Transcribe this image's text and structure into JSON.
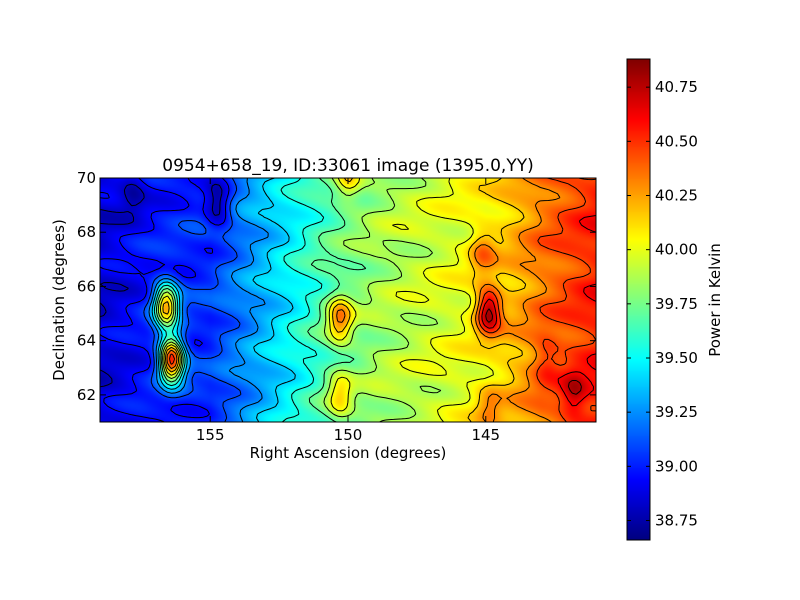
{
  "chart_data": {
    "type": "heatmap",
    "title": "0954+658_19, ID:33061 image (1395.0,YY)",
    "xlabel": "Right Ascension (degrees)",
    "ylabel": "Declination (degrees)",
    "xlim": [
      159,
      141
    ],
    "ylim": [
      61,
      70
    ],
    "x_ticks": [
      155,
      150,
      145
    ],
    "x_tick_labels": [
      "155",
      "150",
      "145"
    ],
    "y_ticks": [
      62,
      64,
      66,
      68,
      70
    ],
    "y_tick_labels": [
      "62",
      "64",
      "66",
      "68",
      "70"
    ],
    "colormap": "jet",
    "contours": true,
    "grid": false,
    "colorbar": {
      "label": "Power in Kelvin",
      "range": [
        38.66,
        40.88
      ],
      "ticks": [
        38.75,
        39.0,
        39.25,
        39.5,
        39.75,
        40.0,
        40.25,
        40.5,
        40.75
      ],
      "tick_labels": [
        "38.75",
        "39.00",
        "39.25",
        "39.50",
        "39.75",
        "40.00",
        "40.25",
        "40.50",
        "40.75"
      ]
    },
    "background_gradient": {
      "ra": [
        159,
        157.5,
        155,
        153,
        151,
        149,
        147,
        145,
        143,
        141
      ],
      "power": [
        38.85,
        38.95,
        39.05,
        39.35,
        39.65,
        39.85,
        39.95,
        40.05,
        40.35,
        40.55
      ]
    },
    "hotspots": [
      {
        "ra": 156.4,
        "dec": 63.3,
        "power": 40.55
      },
      {
        "ra": 156.6,
        "dec": 65.3,
        "power": 40.2
      },
      {
        "ra": 150.3,
        "dec": 64.8,
        "power": 40.3
      },
      {
        "ra": 150.3,
        "dec": 62.0,
        "power": 40.1
      },
      {
        "ra": 144.9,
        "dec": 65.1,
        "power": 40.85
      },
      {
        "ra": 145.1,
        "dec": 67.3,
        "power": 40.35
      },
      {
        "ra": 144.9,
        "dec": 61.5,
        "power": 40.3
      },
      {
        "ra": 141.8,
        "dec": 62.0,
        "power": 40.75
      },
      {
        "ra": 142.8,
        "dec": 63.3,
        "power": 40.55
      },
      {
        "ra": 150.0,
        "dec": 70.0,
        "power": 40.1
      },
      {
        "ra": 154.7,
        "dec": 69.0,
        "power": 38.7
      },
      {
        "ra": 157.8,
        "dec": 69.5,
        "power": 38.75
      }
    ]
  }
}
